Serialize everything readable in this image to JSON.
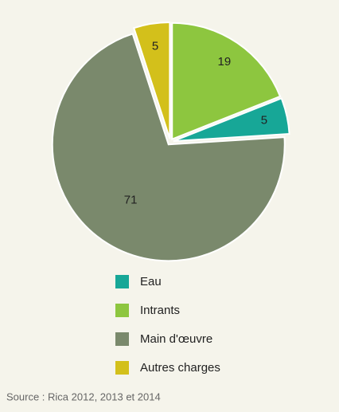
{
  "chart_data": {
    "type": "pie",
    "categories": [
      "Eau",
      "Intrants",
      "Main d'œuvre",
      "Autres charges"
    ],
    "values": [
      5,
      19,
      71,
      5
    ],
    "colors": [
      "#17a797",
      "#8dc63f",
      "#7a896c",
      "#d3c01b"
    ],
    "source": "Source : Rica 2012, 2013 et 2014"
  }
}
